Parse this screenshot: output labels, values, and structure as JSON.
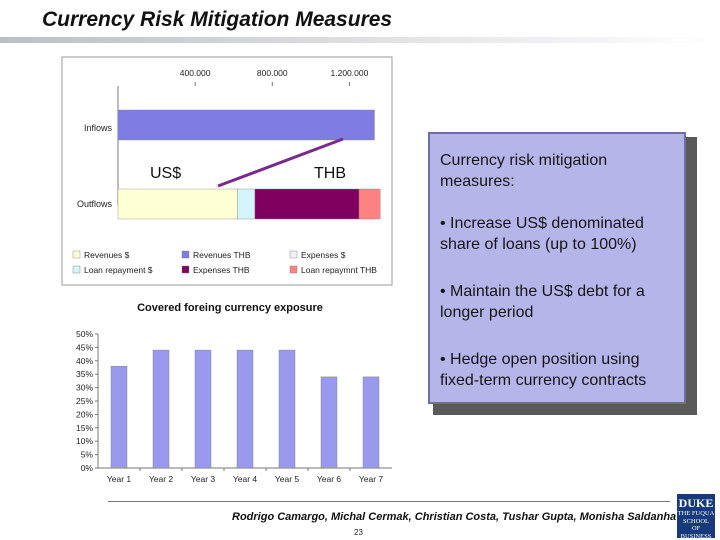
{
  "slide": {
    "title": "Currency Risk Mitigation Measures",
    "authors": "Rodrigo Camargo, Michal Cermak, Christian Costa, Tushar Gupta, Monisha Saldanha",
    "page_number": "23",
    "logo_lines": [
      "DUKE",
      "THE FUQUA",
      "SCHOOL",
      "OF BUSINESS"
    ]
  },
  "callout": {
    "intro": "Currency risk mitigation measures:",
    "bullets": [
      "• Increase US$ denominated share of loans (up to 100%)",
      "• Maintain the US$ debt for a longer period",
      "• Hedge open position using fixed-term currency contracts"
    ]
  },
  "chart_data": [
    {
      "type": "bar",
      "orientation": "horizontal-stacked",
      "title": "",
      "x_ticks": [
        "400.000",
        "800.000",
        "1.200.000"
      ],
      "xlim": [
        0,
        1400000
      ],
      "categories": [
        "Inflows",
        "Outflows"
      ],
      "series": [
        {
          "name": "Revenues $",
          "color": "#ffffd6",
          "values": [
            0,
            620000
          ]
        },
        {
          "name": "Revenues THB",
          "color": "#7d7de3",
          "values": [
            1330000,
            0
          ]
        },
        {
          "name": "Expenses $",
          "color": "#eef2f6",
          "values": [
            0,
            0
          ]
        },
        {
          "name": "Loan repayment $",
          "color": "#d4f5fb",
          "values": [
            0,
            90000
          ]
        },
        {
          "name": "Expenses THB",
          "color": "#800060",
          "values": [
            0,
            540000
          ]
        },
        {
          "name": "Loan repaymnt THB",
          "color": "#ff8282",
          "values": [
            0,
            110000
          ]
        }
      ],
      "legend_position": "bottom",
      "annotations": [
        {
          "text": "US$"
        },
        {
          "text": "THB"
        }
      ]
    },
    {
      "type": "bar",
      "title": "Covered foreing currency exposure",
      "categories": [
        "Year 1",
        "Year 2",
        "Year 3",
        "Year 4",
        "Year 5",
        "Year 6",
        "Year 7"
      ],
      "values": [
        38,
        44,
        44,
        44,
        44,
        34,
        34
      ],
      "y_ticks": [
        "0%",
        "5%",
        "10%",
        "15%",
        "20%",
        "25%",
        "30%",
        "35%",
        "40%",
        "45%",
        "50%"
      ],
      "ylim": [
        0,
        50
      ],
      "unit": "%",
      "bar_color": "#9999ee",
      "grid": false
    }
  ]
}
